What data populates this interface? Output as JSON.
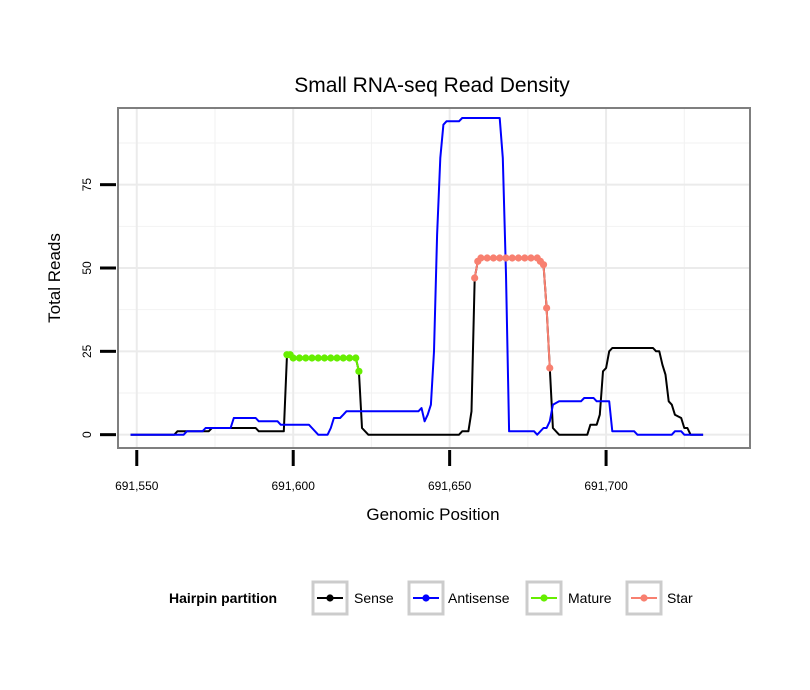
{
  "chart_data": {
    "type": "line",
    "title": "Small RNA-seq Read Density",
    "xlabel": "Genomic Position",
    "ylabel": "Total Reads",
    "xlim": [
      691544,
      691746
    ],
    "ylim": [
      -4,
      98
    ],
    "x_ticks": [
      691550,
      691600,
      691650,
      691700
    ],
    "x_tick_labels": [
      "691,550",
      "691,600",
      "691,650",
      "691,700"
    ],
    "y_ticks": [
      0,
      25,
      50,
      75
    ],
    "y_tick_labels": [
      "0",
      "25",
      "50",
      "75"
    ],
    "grid": true,
    "legend": {
      "title": "Hairpin partition",
      "position": "bottom",
      "entries": [
        {
          "label": "Sense",
          "color": "#000000"
        },
        {
          "label": "Antisense",
          "color": "#0000ff"
        },
        {
          "label": "Mature",
          "color": "#66ee00"
        },
        {
          "label": "Star",
          "color": "#f88070"
        }
      ]
    },
    "series": [
      {
        "name": "Sense",
        "color": "#000000",
        "points": [
          [
            691548,
            0
          ],
          [
            691562,
            0
          ],
          [
            691563,
            1
          ],
          [
            691573,
            1
          ],
          [
            691574,
            2
          ],
          [
            691588,
            2
          ],
          [
            691589,
            1
          ],
          [
            691597,
            1
          ],
          [
            691598,
            24
          ],
          [
            691599,
            24
          ],
          [
            691600,
            23
          ],
          [
            691620,
            23
          ],
          [
            691621,
            19
          ],
          [
            691622,
            2
          ],
          [
            691624,
            0
          ],
          [
            691653,
            0
          ],
          [
            691654,
            1
          ],
          [
            691656,
            1
          ],
          [
            691657,
            7
          ],
          [
            691658,
            47
          ],
          [
            691659,
            52
          ],
          [
            691660,
            53
          ],
          [
            691678,
            53
          ],
          [
            691680,
            51
          ],
          [
            691681,
            38
          ],
          [
            691682,
            20
          ],
          [
            691683,
            2
          ],
          [
            691685,
            0
          ],
          [
            691694,
            0
          ],
          [
            691695,
            3
          ],
          [
            691697,
            3
          ],
          [
            691698,
            6
          ],
          [
            691699,
            19
          ],
          [
            691700,
            20
          ],
          [
            691701,
            25
          ],
          [
            691702,
            26
          ],
          [
            691715,
            26
          ],
          [
            691716,
            25
          ],
          [
            691717,
            25
          ],
          [
            691718,
            21
          ],
          [
            691719,
            18
          ],
          [
            691720,
            10
          ],
          [
            691721,
            9
          ],
          [
            691722,
            6
          ],
          [
            691724,
            5
          ],
          [
            691725,
            2
          ],
          [
            691726,
            2
          ],
          [
            691727,
            0
          ],
          [
            691731,
            0
          ]
        ]
      },
      {
        "name": "Antisense",
        "color": "#0000ff",
        "points": [
          [
            691548,
            0
          ],
          [
            691565,
            0
          ],
          [
            691566,
            1
          ],
          [
            691571,
            1
          ],
          [
            691572,
            2
          ],
          [
            691580,
            2
          ],
          [
            691581,
            5
          ],
          [
            691588,
            5
          ],
          [
            691589,
            4
          ],
          [
            691595,
            4
          ],
          [
            691596,
            3
          ],
          [
            691605,
            3
          ],
          [
            691606,
            2
          ],
          [
            691608,
            0
          ],
          [
            691611,
            0
          ],
          [
            691612,
            2
          ],
          [
            691613,
            5
          ],
          [
            691615,
            5
          ],
          [
            691616,
            6
          ],
          [
            691617,
            7
          ],
          [
            691640,
            7
          ],
          [
            691641,
            8
          ],
          [
            691642,
            4
          ],
          [
            691643,
            6
          ],
          [
            691644,
            9
          ],
          [
            691645,
            25
          ],
          [
            691646,
            60
          ],
          [
            691647,
            83
          ],
          [
            691648,
            93
          ],
          [
            691649,
            94
          ],
          [
            691653,
            94
          ],
          [
            691654,
            95
          ],
          [
            691666,
            95
          ],
          [
            691667,
            83
          ],
          [
            691668,
            48
          ],
          [
            691669,
            1
          ],
          [
            691677,
            1
          ],
          [
            691678,
            0
          ],
          [
            691680,
            2
          ],
          [
            691681,
            2
          ],
          [
            691682,
            4
          ],
          [
            691683,
            9
          ],
          [
            691685,
            10
          ],
          [
            691692,
            10
          ],
          [
            691693,
            11
          ],
          [
            691696,
            11
          ],
          [
            691697,
            10
          ],
          [
            691701,
            10
          ],
          [
            691702,
            1
          ],
          [
            691709,
            1
          ],
          [
            691710,
            0
          ],
          [
            691721,
            0
          ],
          [
            691722,
            1
          ],
          [
            691724,
            1
          ],
          [
            691725,
            0
          ],
          [
            691731,
            0
          ]
        ]
      },
      {
        "name": "Mature",
        "color": "#66ee00",
        "points": [
          [
            691598,
            24
          ],
          [
            691599,
            24
          ],
          [
            691600,
            23
          ],
          [
            691602,
            23
          ],
          [
            691604,
            23
          ],
          [
            691606,
            23
          ],
          [
            691608,
            23
          ],
          [
            691610,
            23
          ],
          [
            691612,
            23
          ],
          [
            691614,
            23
          ],
          [
            691616,
            23
          ],
          [
            691618,
            23
          ],
          [
            691620,
            23
          ],
          [
            691621,
            19
          ]
        ]
      },
      {
        "name": "Star",
        "color": "#f88070",
        "points": [
          [
            691658,
            47
          ],
          [
            691659,
            52
          ],
          [
            691660,
            53
          ],
          [
            691662,
            53
          ],
          [
            691664,
            53
          ],
          [
            691666,
            53
          ],
          [
            691668,
            53
          ],
          [
            691670,
            53
          ],
          [
            691672,
            53
          ],
          [
            691674,
            53
          ],
          [
            691676,
            53
          ],
          [
            691678,
            53
          ],
          [
            691679,
            52
          ],
          [
            691680,
            51
          ],
          [
            691681,
            38
          ],
          [
            691682,
            20
          ]
        ]
      }
    ]
  }
}
